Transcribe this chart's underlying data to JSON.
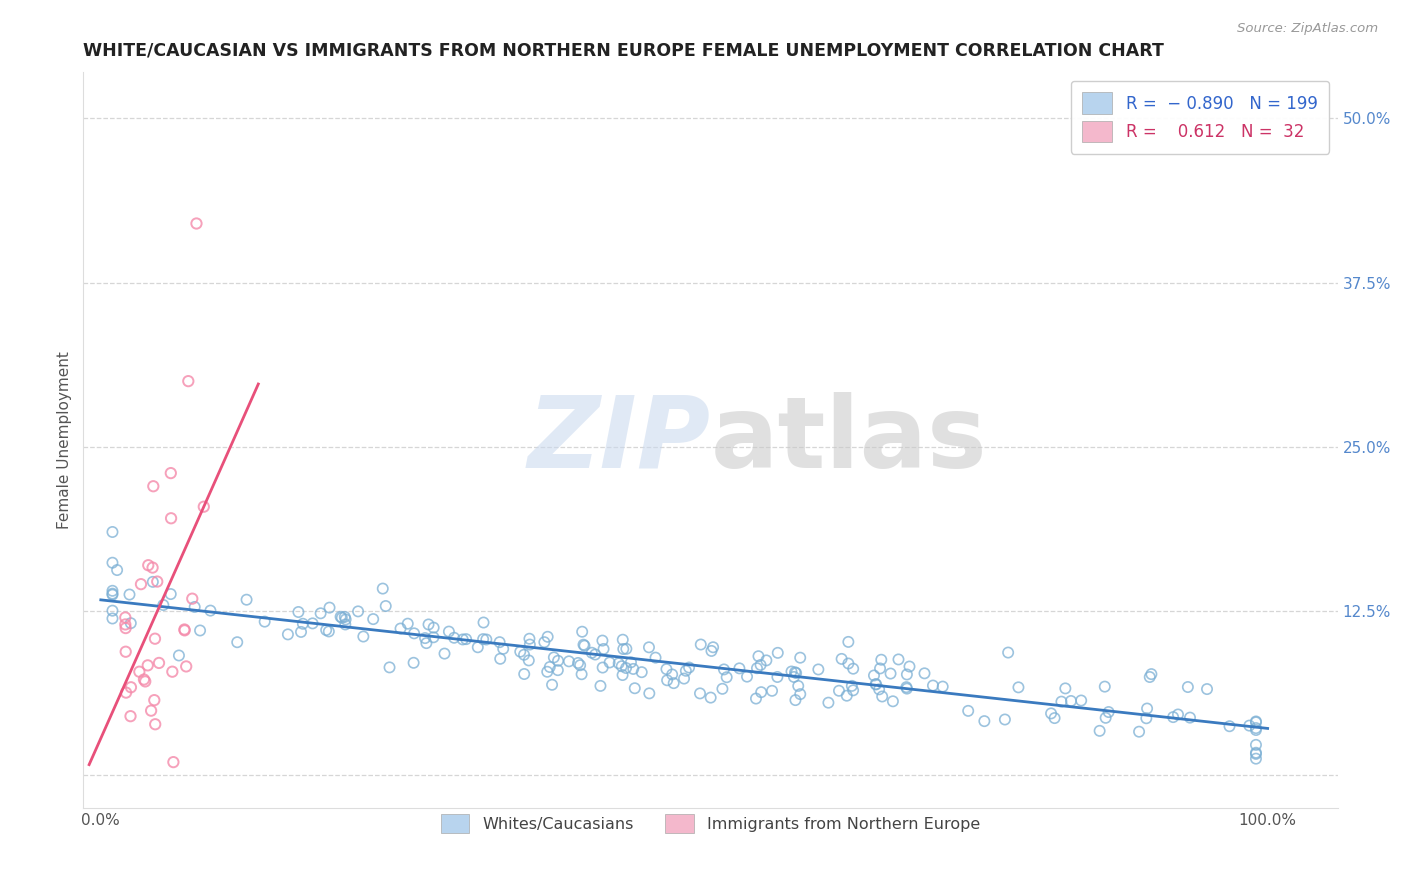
{
  "title": "WHITE/CAUCASIAN VS IMMIGRANTS FROM NORTHERN EUROPE FEMALE UNEMPLOYMENT CORRELATION CHART",
  "source_text": "Source: ZipAtlas.com",
  "ylabel": "Female Unemployment",
  "watermark_zip": "ZIP",
  "watermark_atlas": "atlas",
  "blue_color": "#7bafd4",
  "pink_color": "#f48aaa",
  "blue_line_color": "#3a7abf",
  "pink_line_color": "#e8507a",
  "blue_dot_edge": "#7bafd4",
  "pink_dot_edge": "#f48aaa",
  "yticks": [
    0.0,
    0.125,
    0.25,
    0.375,
    0.5
  ],
  "ytick_labels": [
    "",
    "12.5%",
    "25.0%",
    "37.5%",
    "50.0%"
  ],
  "xticks": [
    0.0,
    1.0
  ],
  "xtick_labels": [
    "0.0%",
    "100.0%"
  ],
  "xlim": [
    -0.015,
    1.06
  ],
  "ylim": [
    -0.025,
    0.535
  ],
  "background_color": "#ffffff",
  "grid_color": "#cccccc",
  "title_fontsize": 12.5,
  "axis_label_fontsize": 11,
  "tick_fontsize": 11,
  "legend_R1": "R = ",
  "legend_V1": "-0.890",
  "legend_N1": "N = 199",
  "legend_R2": "R = ",
  "legend_V2": " 0.612",
  "legend_N2": "N =  32",
  "blue_R": -0.89,
  "blue_N": 199,
  "pink_R": 0.612,
  "pink_N": 32
}
